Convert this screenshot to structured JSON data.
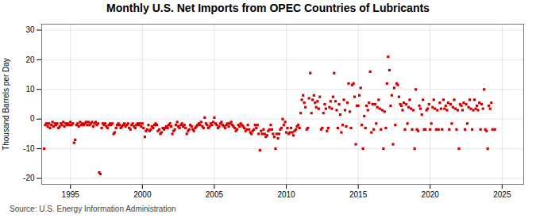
{
  "chart_data": {
    "type": "scatter",
    "title": "Monthly U.S. Net Imports from OPEC Countries of Lubricants",
    "ylabel": "Thousand Barrels per Day",
    "source": "Source: U.S. Energy Information Administration",
    "xlim": [
      1993.0,
      2026.5
    ],
    "ylim": [
      -22,
      32
    ],
    "xticks": [
      1995,
      2000,
      2005,
      2010,
      2015,
      2020,
      2025
    ],
    "yticks": [
      -20,
      -10,
      0,
      10,
      20,
      30
    ],
    "color": "#cc0000",
    "marker": "square",
    "grid": true,
    "x": [
      1993.17,
      1993.25,
      1993.33,
      1993.42,
      1993.5,
      1993.58,
      1993.67,
      1993.75,
      1993.83,
      1993.92,
      1994.0,
      1994.08,
      1994.17,
      1994.25,
      1994.33,
      1994.42,
      1994.5,
      1994.58,
      1994.67,
      1994.75,
      1994.83,
      1994.92,
      1995.0,
      1995.08,
      1995.17,
      1995.25,
      1995.33,
      1995.42,
      1995.5,
      1995.58,
      1995.67,
      1995.75,
      1995.83,
      1995.92,
      1996.0,
      1996.08,
      1996.17,
      1996.25,
      1996.33,
      1996.42,
      1996.5,
      1996.58,
      1996.67,
      1996.75,
      1996.83,
      1996.92,
      1997.0,
      1997.08,
      1997.17,
      1997.25,
      1997.33,
      1997.42,
      1997.5,
      1997.58,
      1997.67,
      1997.75,
      1997.83,
      1997.92,
      1998.0,
      1998.08,
      1998.17,
      1998.25,
      1998.33,
      1998.42,
      1998.5,
      1998.58,
      1998.67,
      1998.75,
      1998.83,
      1998.92,
      1999.0,
      1999.08,
      1999.17,
      1999.25,
      1999.33,
      1999.42,
      1999.5,
      1999.58,
      1999.67,
      1999.75,
      1999.83,
      1999.92,
      2000.0,
      2000.08,
      2000.17,
      2000.25,
      2000.33,
      2000.42,
      2000.5,
      2000.58,
      2000.67,
      2000.75,
      2000.83,
      2000.92,
      2001.0,
      2001.08,
      2001.17,
      2001.25,
      2001.33,
      2001.42,
      2001.5,
      2001.58,
      2001.67,
      2001.75,
      2001.83,
      2001.92,
      2002.0,
      2002.08,
      2002.17,
      2002.25,
      2002.33,
      2002.42,
      2002.5,
      2002.58,
      2002.67,
      2002.75,
      2002.83,
      2002.92,
      2003.0,
      2003.08,
      2003.17,
      2003.25,
      2003.33,
      2003.42,
      2003.5,
      2003.58,
      2003.67,
      2003.75,
      2003.83,
      2003.92,
      2004.0,
      2004.08,
      2004.17,
      2004.25,
      2004.33,
      2004.42,
      2004.5,
      2004.58,
      2004.67,
      2004.75,
      2004.83,
      2004.92,
      2005.0,
      2005.08,
      2005.17,
      2005.25,
      2005.33,
      2005.42,
      2005.5,
      2005.58,
      2005.67,
      2005.75,
      2005.83,
      2005.92,
      2006.0,
      2006.08,
      2006.17,
      2006.25,
      2006.33,
      2006.42,
      2006.5,
      2006.58,
      2006.67,
      2006.75,
      2006.83,
      2006.92,
      2007.0,
      2007.08,
      2007.17,
      2007.25,
      2007.33,
      2007.42,
      2007.5,
      2007.58,
      2007.67,
      2007.75,
      2007.83,
      2007.92,
      2008.0,
      2008.08,
      2008.17,
      2008.25,
      2008.33,
      2008.42,
      2008.5,
      2008.58,
      2008.67,
      2008.75,
      2008.83,
      2008.92,
      2009.0,
      2009.08,
      2009.17,
      2009.25,
      2009.33,
      2009.42,
      2009.5,
      2009.58,
      2009.67,
      2009.75,
      2009.83,
      2009.92,
      2010.0,
      2010.08,
      2010.17,
      2010.25,
      2010.33,
      2010.42,
      2010.5,
      2010.58,
      2010.67,
      2010.75,
      2010.83,
      2010.92,
      2011.0,
      2011.08,
      2011.17,
      2011.25,
      2011.33,
      2011.42,
      2011.5,
      2011.58,
      2011.67,
      2011.75,
      2011.83,
      2011.92,
      2012.0,
      2012.08,
      2012.17,
      2012.25,
      2012.33,
      2012.42,
      2012.5,
      2012.58,
      2012.67,
      2012.75,
      2012.83,
      2012.92,
      2013.0,
      2013.08,
      2013.17,
      2013.25,
      2013.33,
      2013.42,
      2013.5,
      2013.58,
      2013.67,
      2013.75,
      2013.83,
      2013.92,
      2014.0,
      2014.08,
      2014.17,
      2014.25,
      2014.33,
      2014.42,
      2014.5,
      2014.58,
      2014.67,
      2014.75,
      2014.83,
      2014.92,
      2015.0,
      2015.08,
      2015.17,
      2015.25,
      2015.33,
      2015.42,
      2015.5,
      2015.58,
      2015.67,
      2015.75,
      2015.83,
      2015.92,
      2016.0,
      2016.08,
      2016.17,
      2016.25,
      2016.33,
      2016.42,
      2016.5,
      2016.58,
      2016.67,
      2016.75,
      2016.83,
      2016.92,
      2017.0,
      2017.08,
      2017.17,
      2017.25,
      2017.33,
      2017.42,
      2017.5,
      2017.58,
      2017.67,
      2017.75,
      2017.83,
      2017.92,
      2018.0,
      2018.08,
      2018.17,
      2018.25,
      2018.33,
      2018.42,
      2018.5,
      2018.58,
      2018.67,
      2018.75,
      2018.83,
      2018.92,
      2019.0,
      2019.08,
      2019.17,
      2019.25,
      2019.33,
      2019.42,
      2019.5,
      2019.58,
      2019.67,
      2019.75,
      2019.83,
      2019.92,
      2020.0,
      2020.08,
      2020.17,
      2020.25,
      2020.33,
      2020.42,
      2020.5,
      2020.58,
      2020.67,
      2020.75,
      2020.83,
      2020.92,
      2021.0,
      2021.08,
      2021.17,
      2021.25,
      2021.33,
      2021.42,
      2021.5,
      2021.58,
      2021.67,
      2021.75,
      2021.83,
      2021.92,
      2022.0,
      2022.08,
      2022.17,
      2022.25,
      2022.33,
      2022.42,
      2022.5,
      2022.58,
      2022.67,
      2022.75,
      2022.83,
      2022.92,
      2023.0,
      2023.08,
      2023.17,
      2023.25,
      2023.33,
      2023.42,
      2023.5,
      2023.58,
      2023.67,
      2023.75,
      2023.83,
      2023.92,
      2024.0,
      2024.08,
      2024.17,
      2024.25,
      2024.33,
      2024.5
    ],
    "values": [
      -10.0,
      -2.0,
      -1.5,
      -2.5,
      -1.5,
      -3.0,
      -2.0,
      -1.0,
      -2.5,
      -1.5,
      -2.0,
      -1.5,
      -3.0,
      -2.5,
      -1.5,
      -2.0,
      -1.0,
      -2.5,
      -1.5,
      -2.0,
      -1.5,
      -2.0,
      -1.0,
      -2.0,
      -1.5,
      -8.0,
      -7.0,
      -2.0,
      -1.5,
      -2.5,
      -1.0,
      -2.0,
      -1.5,
      -2.0,
      -1.5,
      -1.0,
      -2.0,
      -1.0,
      -2.0,
      -1.5,
      -1.0,
      -2.5,
      -1.5,
      -1.0,
      -2.0,
      -1.5,
      -18.0,
      -18.5,
      -3.0,
      -1.5,
      -2.0,
      -1.5,
      -2.5,
      -3.0,
      -2.0,
      -1.5,
      -2.0,
      -1.5,
      -5.0,
      -4.5,
      -3.0,
      -2.0,
      -1.5,
      -2.0,
      -3.0,
      -2.5,
      -2.0,
      -1.5,
      -2.5,
      -2.0,
      -1.5,
      -3.0,
      -3.5,
      -2.0,
      -1.5,
      -2.5,
      -3.0,
      -2.0,
      -1.5,
      -2.0,
      -1.5,
      -2.5,
      -1.5,
      -3.0,
      -6.0,
      -4.0,
      -3.5,
      -2.0,
      -4.0,
      -3.5,
      -2.5,
      -3.0,
      -2.0,
      -1.5,
      -2.0,
      -4.0,
      -3.5,
      -5.0,
      -4.5,
      -3.0,
      -3.5,
      -3.0,
      -2.5,
      -3.0,
      -2.0,
      -1.5,
      -2.5,
      -5.0,
      -4.0,
      -3.5,
      -2.0,
      -1.0,
      -2.5,
      -3.0,
      -2.0,
      -1.5,
      -2.5,
      -2.0,
      -3.0,
      -5.0,
      -4.0,
      -3.5,
      -2.0,
      -2.5,
      -3.5,
      -4.0,
      -3.0,
      -2.5,
      -2.0,
      -1.5,
      -2.0,
      -1.0,
      -2.5,
      -3.0,
      0.5,
      -1.5,
      -2.0,
      -3.0,
      -2.5,
      -1.5,
      -2.0,
      -1.0,
      0.5,
      -1.5,
      -2.0,
      -3.0,
      -2.5,
      -1.5,
      -1.0,
      -2.0,
      -2.5,
      -3.0,
      -2.0,
      -1.5,
      -2.5,
      -1.5,
      -1.0,
      -2.0,
      -2.5,
      -3.0,
      -4.0,
      -3.5,
      -2.0,
      -2.5,
      -1.5,
      -2.0,
      -2.5,
      -3.0,
      -4.0,
      -3.5,
      -2.0,
      -3.5,
      -4.5,
      -5.0,
      -4.0,
      -3.5,
      -2.0,
      -3.0,
      -2.0,
      -5.0,
      -10.5,
      -4.0,
      -5.0,
      -3.5,
      -5.0,
      -6.0,
      -5.5,
      -4.0,
      -3.5,
      -2.0,
      -3.5,
      -5.0,
      -6.0,
      -10.0,
      -5.0,
      -6.5,
      -5.0,
      -3.5,
      -3.0,
      0.0,
      -2.0,
      -1.0,
      -4.5,
      -3.0,
      -5.0,
      -4.5,
      -3.0,
      -4.5,
      -5.5,
      -4.0,
      -3.5,
      -2.5,
      -2.0,
      -3.0,
      2.0,
      6.5,
      8.0,
      5.5,
      4.0,
      -3.5,
      -3.0,
      7.0,
      15.5,
      2.0,
      6.5,
      8.0,
      5.5,
      4.0,
      6.0,
      3.5,
      7.5,
      -3.5,
      -3.0,
      2.0,
      5.0,
      3.5,
      -4.0,
      -3.0,
      4.0,
      6.0,
      3.5,
      7.5,
      15.5,
      6.0,
      3.0,
      -3.0,
      5.0,
      1.5,
      -4.5,
      -2.0,
      6.5,
      3.0,
      -2.5,
      5.5,
      12.0,
      2.5,
      -3.0,
      11.5,
      12.0,
      7.5,
      -8.5,
      4.5,
      4.5,
      8.0,
      10.5,
      -2.0,
      -10.0,
      1.0,
      -3.0,
      4.5,
      3.0,
      5.5,
      16.0,
      -4.5,
      5.0,
      -3.5,
      5.0,
      -1.5,
      4.0,
      6.5,
      3.5,
      -3.5,
      3.0,
      -10.0,
      2.5,
      -3.0,
      12.0,
      21.0,
      16.5,
      4.5,
      8.0,
      -8.5,
      10.5,
      -2.0,
      12.0,
      11.5,
      7.5,
      5.0,
      4.5,
      3.0,
      5.5,
      -3.5,
      5.0,
      -1.5,
      4.0,
      6.5,
      3.5,
      -3.5,
      3.0,
      -10.0,
      10.0,
      -3.5,
      -4.0,
      4.5,
      3.5,
      1.5,
      6.5,
      -3.5,
      -3.5,
      3.0,
      3.5,
      5.0,
      -3.5,
      -1.5,
      4.0,
      6.5,
      3.5,
      -3.5,
      3.0,
      -3.5,
      5.5,
      3.5,
      -3.5,
      6.5,
      3.5,
      4.5,
      3.0,
      5.5,
      -3.5,
      5.0,
      -1.5,
      4.0,
      6.5,
      3.5,
      -3.5,
      3.0,
      -10.0,
      5.0,
      4.5,
      3.0,
      5.5,
      -3.5,
      5.0,
      -1.5,
      4.0,
      6.5,
      3.5,
      -3.5,
      3.0,
      6.5,
      3.5,
      4.5,
      3.0,
      5.5,
      -3.5,
      5.0,
      3.5,
      10.0,
      -3.5,
      -4.0,
      -10.0,
      4.5,
      3.5,
      5.5,
      -3.5,
      -3.5
    ]
  }
}
